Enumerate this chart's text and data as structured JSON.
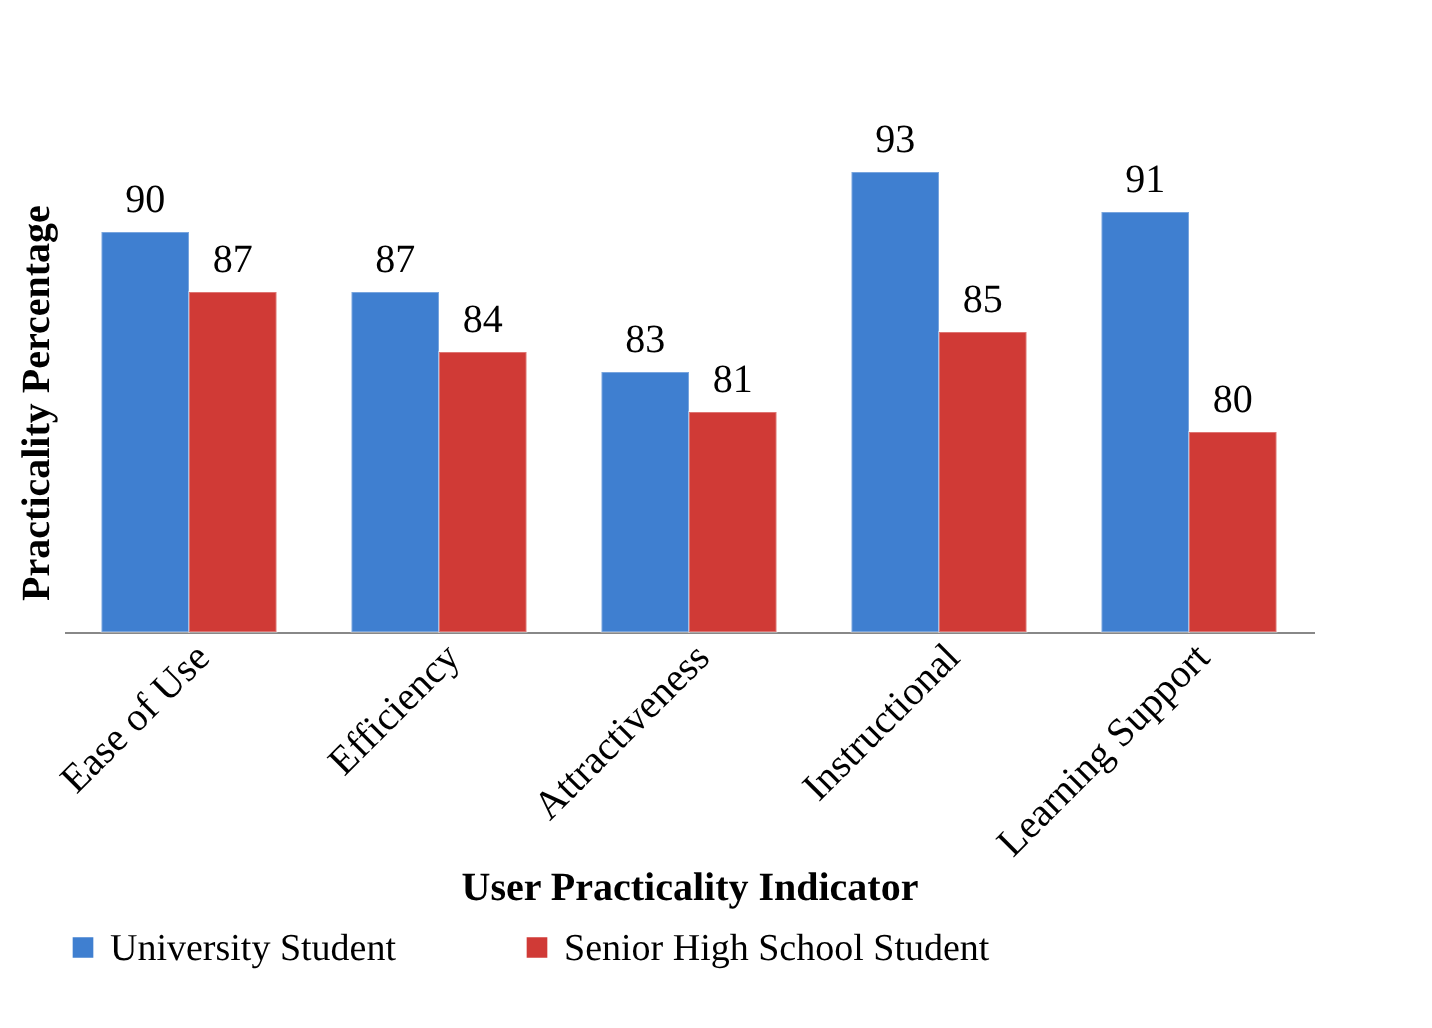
{
  "chart_data": {
    "type": "bar",
    "xlabel": "User Practicality Indicator",
    "ylabel": "Practicality Percentage",
    "categories": [
      "Ease of Use",
      "Efficiency",
      "Attractiveness",
      "Instructional",
      "Learning Support"
    ],
    "series": [
      {
        "name": "University Student",
        "color": "#3f7fd0",
        "values": [
          90,
          87,
          83,
          93,
          91
        ]
      },
      {
        "name": "Senior High School Student",
        "color": "#d03a36",
        "values": [
          87,
          84,
          81,
          85,
          80
        ]
      }
    ],
    "ylim": [
      70,
      93
    ],
    "tick_labels": "x",
    "data_labels": true,
    "legend": "bottom",
    "grid": false
  }
}
